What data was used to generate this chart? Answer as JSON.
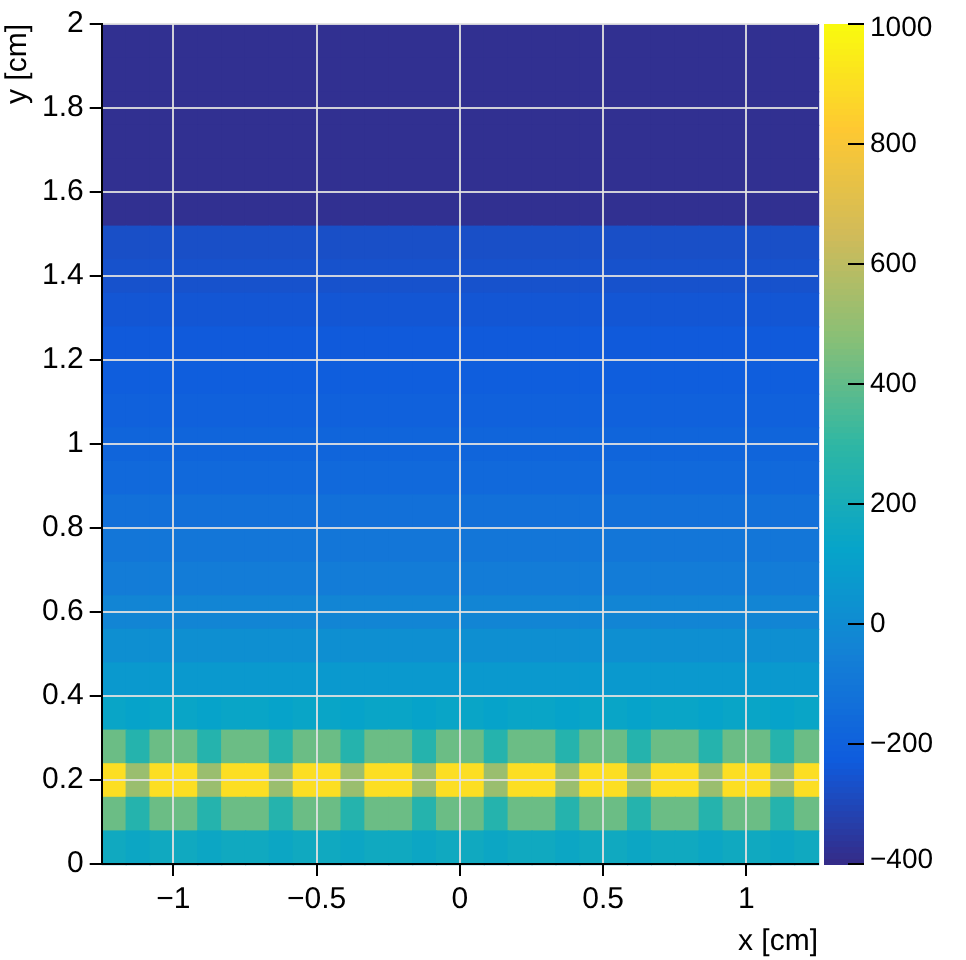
{
  "chart_data": {
    "type": "heatmap",
    "xlabel": "x [cm]",
    "ylabel": "y [cm]",
    "xlim": [
      -1.25,
      1.25
    ],
    "ylim": [
      0,
      2
    ],
    "xticks": [
      -1,
      -0.5,
      0,
      0.5,
      1
    ],
    "yticks": [
      0,
      0.2,
      0.4,
      0.6,
      0.8,
      1,
      1.2,
      1.4,
      1.6,
      1.8,
      2
    ],
    "grid": true,
    "clim": [
      -400,
      1000
    ],
    "cticks": [
      -400,
      -200,
      0,
      200,
      400,
      600,
      800,
      1000
    ],
    "cells": [
      [
        -380,
        -380,
        -380,
        -380,
        -380,
        -380,
        -380,
        -380,
        -380,
        -380,
        -380,
        -380,
        -380,
        -380,
        -380,
        -380,
        -380,
        -380,
        -380,
        -380,
        -380,
        -380,
        -380,
        -380,
        -380,
        -380,
        -380,
        -380,
        -380,
        -380
      ],
      [
        -380,
        -380,
        -380,
        -380,
        -380,
        -380,
        -380,
        -380,
        -380,
        -380,
        -380,
        -380,
        -380,
        -380,
        -380,
        -380,
        -380,
        -380,
        -380,
        -380,
        -380,
        -380,
        -380,
        -380,
        -380,
        -380,
        -380,
        -380,
        -380,
        -380
      ],
      [
        -380,
        -380,
        -380,
        -380,
        -380,
        -380,
        -380,
        -380,
        -380,
        -380,
        -380,
        -380,
        -380,
        -380,
        -380,
        -380,
        -380,
        -380,
        -380,
        -380,
        -380,
        -380,
        -380,
        -380,
        -380,
        -380,
        -380,
        -380,
        -380,
        -380
      ],
      [
        -380,
        -380,
        -380,
        -380,
        -380,
        -380,
        -380,
        -380,
        -380,
        -380,
        -380,
        -380,
        -380,
        -380,
        -380,
        -380,
        -380,
        -380,
        -380,
        -380,
        -380,
        -380,
        -380,
        -380,
        -380,
        -380,
        -380,
        -380,
        -380,
        -380
      ],
      [
        -380,
        -380,
        -380,
        -380,
        -380,
        -380,
        -380,
        -380,
        -380,
        -380,
        -380,
        -380,
        -380,
        -380,
        -380,
        -380,
        -380,
        -380,
        -380,
        -380,
        -380,
        -380,
        -380,
        -380,
        -380,
        -380,
        -380,
        -380,
        -380,
        -380
      ],
      [
        -380,
        -380,
        -380,
        -380,
        -380,
        -380,
        -380,
        -380,
        -380,
        -380,
        -380,
        -380,
        -380,
        -380,
        -380,
        -380,
        -380,
        -380,
        -380,
        -380,
        -380,
        -380,
        -380,
        -380,
        -380,
        -380,
        -380,
        -380,
        -380,
        -380
      ],
      [
        -270,
        -270,
        -270,
        -270,
        -270,
        -270,
        -270,
        -270,
        -270,
        -270,
        -270,
        -270,
        -270,
        -270,
        -270,
        -270,
        -270,
        -270,
        -270,
        -270,
        -270,
        -270,
        -270,
        -270,
        -270,
        -270,
        -270,
        -270,
        -270,
        -270
      ],
      [
        -260,
        -260,
        -260,
        -260,
        -260,
        -260,
        -260,
        -260,
        -260,
        -260,
        -260,
        -260,
        -260,
        -260,
        -260,
        -260,
        -260,
        -260,
        -260,
        -260,
        -260,
        -260,
        -260,
        -260,
        -260,
        -260,
        -260,
        -260,
        -260,
        -260
      ],
      [
        -245,
        -245,
        -245,
        -245,
        -245,
        -245,
        -245,
        -245,
        -245,
        -245,
        -245,
        -245,
        -245,
        -245,
        -245,
        -245,
        -245,
        -245,
        -245,
        -245,
        -245,
        -245,
        -245,
        -245,
        -245,
        -245,
        -245,
        -245,
        -245,
        -245
      ],
      [
        -230,
        -230,
        -230,
        -230,
        -230,
        -230,
        -230,
        -230,
        -230,
        -230,
        -230,
        -230,
        -230,
        -230,
        -230,
        -230,
        -230,
        -230,
        -230,
        -230,
        -230,
        -230,
        -230,
        -230,
        -230,
        -230,
        -230,
        -230,
        -230,
        -230
      ],
      [
        -215,
        -215,
        -215,
        -215,
        -215,
        -215,
        -215,
        -215,
        -215,
        -215,
        -215,
        -215,
        -215,
        -215,
        -215,
        -215,
        -215,
        -215,
        -215,
        -215,
        -215,
        -215,
        -215,
        -215,
        -215,
        -215,
        -215,
        -215,
        -215,
        -215
      ],
      [
        -200,
        -200,
        -200,
        -200,
        -200,
        -200,
        -200,
        -200,
        -200,
        -200,
        -200,
        -200,
        -200,
        -200,
        -200,
        -200,
        -200,
        -200,
        -200,
        -200,
        -200,
        -200,
        -200,
        -200,
        -200,
        -200,
        -200,
        -200,
        -200,
        -200
      ],
      [
        -180,
        -180,
        -180,
        -180,
        -180,
        -180,
        -180,
        -180,
        -180,
        -180,
        -180,
        -180,
        -180,
        -180,
        -180,
        -180,
        -180,
        -180,
        -180,
        -180,
        -180,
        -180,
        -180,
        -180,
        -180,
        -180,
        -180,
        -180,
        -180,
        -180
      ],
      [
        -160,
        -160,
        -160,
        -160,
        -160,
        -160,
        -160,
        -160,
        -160,
        -160,
        -160,
        -160,
        -160,
        -160,
        -160,
        -160,
        -160,
        -160,
        -160,
        -160,
        -160,
        -160,
        -160,
        -160,
        -160,
        -160,
        -160,
        -160,
        -160,
        -160
      ],
      [
        -130,
        -130,
        -130,
        -130,
        -130,
        -130,
        -130,
        -130,
        -130,
        -130,
        -130,
        -130,
        -130,
        -130,
        -130,
        -130,
        -130,
        -130,
        -130,
        -130,
        -130,
        -130,
        -130,
        -130,
        -130,
        -130,
        -130,
        -130,
        -130,
        -130
      ],
      [
        -100,
        -100,
        -100,
        -100,
        -100,
        -100,
        -100,
        -100,
        -100,
        -100,
        -100,
        -100,
        -100,
        -100,
        -100,
        -100,
        -100,
        -100,
        -100,
        -100,
        -100,
        -100,
        -100,
        -100,
        -100,
        -100,
        -100,
        -100,
        -100,
        -100
      ],
      [
        -70,
        -70,
        -70,
        -70,
        -70,
        -70,
        -70,
        -70,
        -70,
        -70,
        -70,
        -70,
        -70,
        -70,
        -70,
        -70,
        -70,
        -70,
        -70,
        -70,
        -70,
        -70,
        -70,
        -70,
        -70,
        -70,
        -70,
        -70,
        -70,
        -70
      ],
      [
        -30,
        -30,
        -30,
        -30,
        -30,
        -30,
        -30,
        -30,
        -30,
        -30,
        -30,
        -30,
        -30,
        -30,
        -30,
        -30,
        -30,
        -30,
        -30,
        -30,
        -30,
        -30,
        -30,
        -30,
        -30,
        -30,
        -30,
        -30,
        -30,
        -30
      ],
      [
        20,
        20,
        20,
        20,
        20,
        20,
        20,
        20,
        20,
        20,
        20,
        20,
        20,
        20,
        20,
        20,
        20,
        20,
        20,
        20,
        20,
        20,
        20,
        20,
        20,
        20,
        20,
        20,
        20,
        20
      ],
      [
        70,
        70,
        70,
        70,
        70,
        70,
        70,
        70,
        70,
        70,
        70,
        70,
        70,
        70,
        70,
        70,
        70,
        70,
        70,
        70,
        70,
        70,
        70,
        70,
        70,
        70,
        70,
        70,
        70,
        70
      ],
      [
        140,
        120,
        140,
        140,
        120,
        140,
        140,
        120,
        140,
        140,
        120,
        140,
        140,
        120,
        140,
        140,
        120,
        140,
        140,
        120,
        140,
        140,
        120,
        140,
        140,
        120,
        140,
        140,
        120,
        140
      ],
      [
        420,
        260,
        420,
        420,
        260,
        420,
        420,
        260,
        420,
        420,
        260,
        420,
        420,
        260,
        420,
        420,
        260,
        420,
        420,
        260,
        420,
        420,
        260,
        420,
        420,
        260,
        420,
        420,
        260,
        420
      ],
      [
        900,
        520,
        900,
        900,
        520,
        900,
        900,
        520,
        900,
        900,
        520,
        900,
        900,
        520,
        900,
        900,
        520,
        900,
        900,
        520,
        900,
        900,
        520,
        900,
        900,
        520,
        900,
        900,
        520,
        900
      ],
      [
        420,
        260,
        420,
        420,
        260,
        420,
        420,
        260,
        420,
        420,
        260,
        420,
        420,
        260,
        420,
        420,
        260,
        420,
        420,
        260,
        420,
        420,
        260,
        420,
        420,
        260,
        420,
        420,
        260,
        420
      ],
      [
        170,
        150,
        170,
        170,
        150,
        170,
        170,
        150,
        170,
        170,
        150,
        170,
        170,
        150,
        170,
        170,
        150,
        170,
        170,
        150,
        170,
        170,
        150,
        170,
        170,
        150,
        170,
        170,
        150,
        170
      ]
    ]
  }
}
